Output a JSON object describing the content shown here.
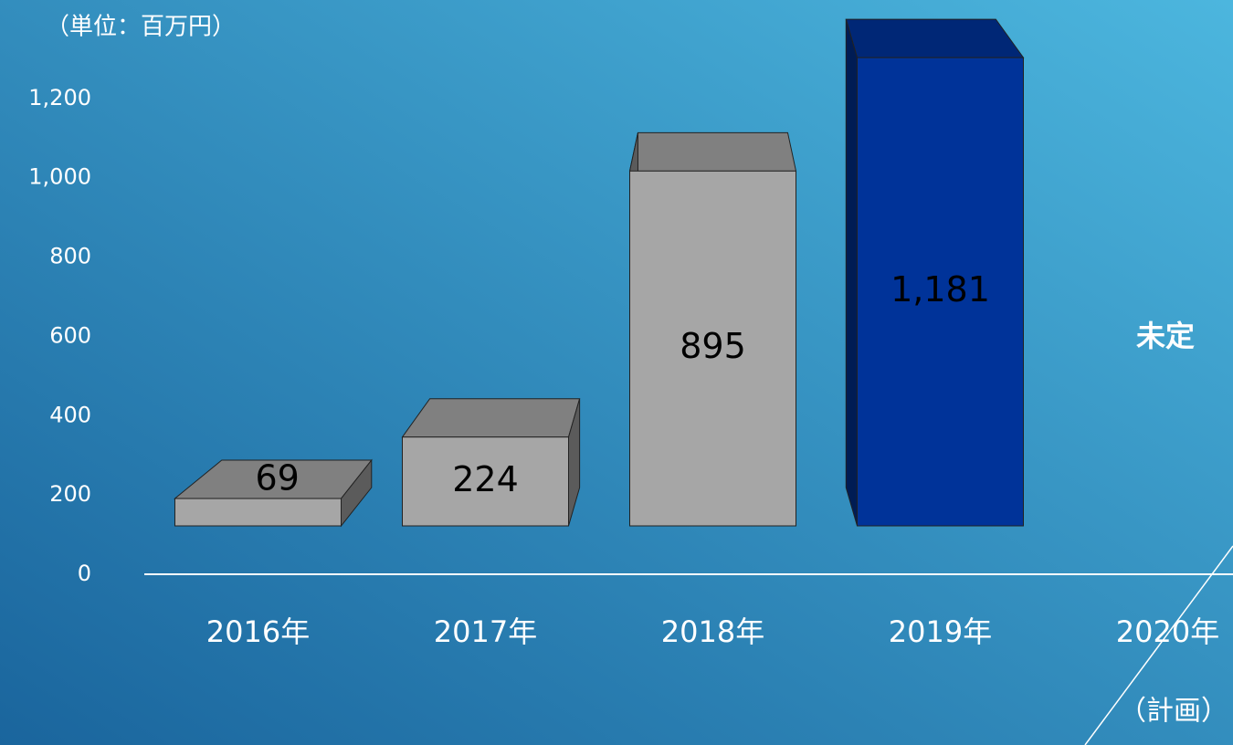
{
  "chart_data": {
    "type": "bar3d",
    "unit_label": "（単位：百万円）",
    "categories": [
      "2016年",
      "2017年",
      "2018年",
      "2019年",
      "2020年"
    ],
    "category_note": "（計画）",
    "values": [
      69,
      224,
      895,
      1181,
      null
    ],
    "value_labels": [
      "69",
      "224",
      "895",
      "1,181",
      null
    ],
    "colors": [
      "#a6a6a6",
      "#a6a6a6",
      "#a6a6a6",
      "#003399",
      null
    ],
    "annotation": "未定",
    "ylim": [
      0,
      1400
    ],
    "yticks": [
      0,
      200,
      400,
      600,
      800,
      {
        "value": 1000,
        "label": "1,000"
      },
      {
        "value": 1200,
        "label": "1,200"
      }
    ],
    "grid": false
  }
}
